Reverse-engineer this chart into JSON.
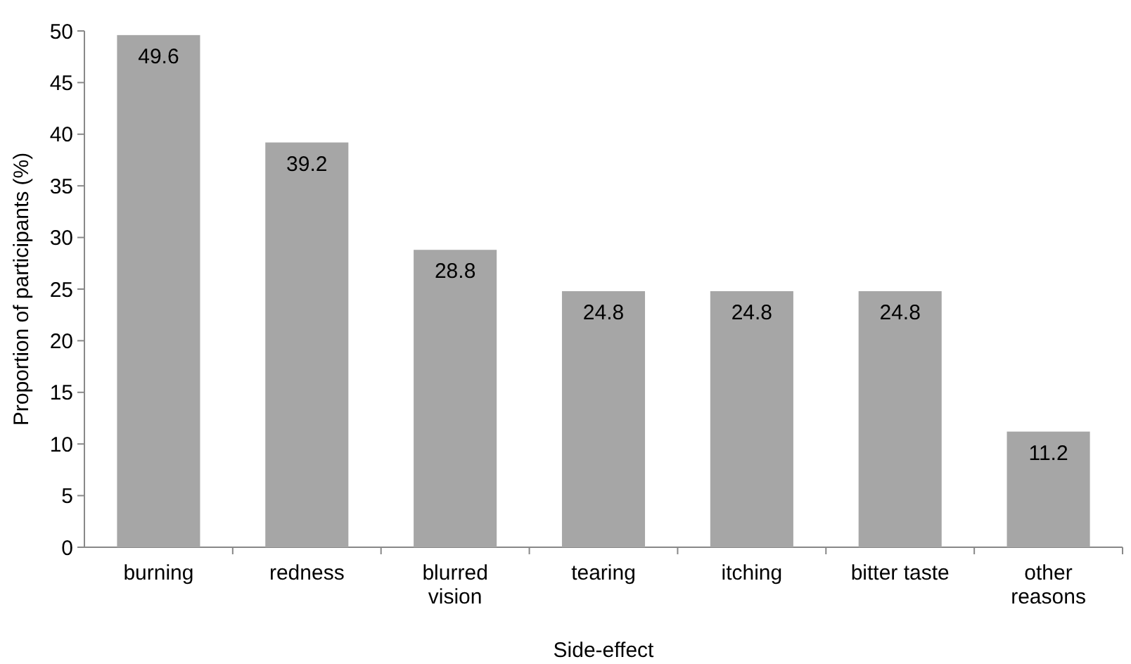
{
  "chart_data": {
    "type": "bar",
    "xlabel": "Side-effect",
    "ylabel": "Proportion of participants (%)",
    "categories": [
      "burning",
      "redness",
      "blurred vision",
      "tearing",
      "itching",
      "bitter taste",
      "other reasons"
    ],
    "values": [
      49.6,
      39.2,
      28.8,
      24.8,
      24.8,
      24.8,
      11.2
    ],
    "color": "#a6a6a6",
    "ylim": [
      0,
      50
    ],
    "yticks": [
      0,
      5,
      10,
      15,
      20,
      25,
      30,
      35,
      40,
      45,
      50
    ],
    "grid": false,
    "data_labels": true
  }
}
